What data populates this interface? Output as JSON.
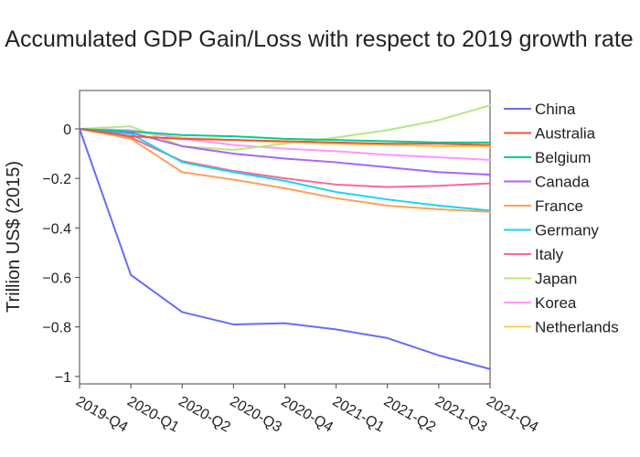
{
  "chart_data": {
    "type": "line",
    "title": "Accumulated GDP Gain/Loss with respect to 2019 growth rate",
    "xlabel": "",
    "ylabel": "Trillion US$ (2015)",
    "categories": [
      "2019-Q4",
      "2020-Q1",
      "2020-Q2",
      "2020-Q3",
      "2020-Q4",
      "2021-Q1",
      "2021-Q2",
      "2021-Q3",
      "2021-Q4"
    ],
    "ylim": [
      -1.03,
      0.155
    ],
    "yticks": [
      0,
      -0.2,
      -0.4,
      -0.6,
      -0.8,
      -1
    ],
    "ytick_labels": [
      "0",
      "−0.2",
      "−0.4",
      "−0.6",
      "−0.8",
      "−1"
    ],
    "grid": false,
    "legend_position": "right",
    "series": [
      {
        "name": "China",
        "color": "#636efa",
        "values": [
          0,
          -0.59,
          -0.74,
          -0.79,
          -0.785,
          -0.81,
          -0.845,
          -0.915,
          -0.97
        ]
      },
      {
        "name": "Australia",
        "color": "#ef553b",
        "values": [
          0,
          -0.03,
          -0.04,
          -0.045,
          -0.05,
          -0.055,
          -0.06,
          -0.06,
          -0.065
        ]
      },
      {
        "name": "Belgium",
        "color": "#00cc96",
        "values": [
          0,
          -0.01,
          -0.025,
          -0.03,
          -0.04,
          -0.045,
          -0.05,
          -0.055,
          -0.055
        ]
      },
      {
        "name": "Canada",
        "color": "#ab63fa",
        "values": [
          0,
          -0.015,
          -0.07,
          -0.1,
          -0.12,
          -0.135,
          -0.155,
          -0.175,
          -0.185
        ]
      },
      {
        "name": "France",
        "color": "#ffa15a",
        "values": [
          0,
          -0.04,
          -0.175,
          -0.205,
          -0.24,
          -0.28,
          -0.31,
          -0.325,
          -0.335
        ]
      },
      {
        "name": "Germany",
        "color": "#19d3f3",
        "values": [
          0,
          -0.02,
          -0.135,
          -0.175,
          -0.21,
          -0.255,
          -0.285,
          -0.31,
          -0.33
        ]
      },
      {
        "name": "Italy",
        "color": "#ff6692",
        "values": [
          0,
          -0.035,
          -0.13,
          -0.17,
          -0.2,
          -0.225,
          -0.235,
          -0.23,
          -0.22
        ]
      },
      {
        "name": "Japan",
        "color": "#b6e880",
        "values": [
          0,
          0.01,
          -0.07,
          -0.085,
          -0.06,
          -0.035,
          -0.005,
          0.035,
          0.095
        ]
      },
      {
        "name": "Korea",
        "color": "#ff97ff",
        "values": [
          0,
          -0.005,
          -0.04,
          -0.065,
          -0.08,
          -0.09,
          -0.105,
          -0.115,
          -0.125
        ]
      },
      {
        "name": "Netherlands",
        "color": "#fecb52",
        "values": [
          0,
          -0.01,
          -0.035,
          -0.045,
          -0.055,
          -0.06,
          -0.065,
          -0.07,
          -0.07
        ]
      }
    ]
  }
}
